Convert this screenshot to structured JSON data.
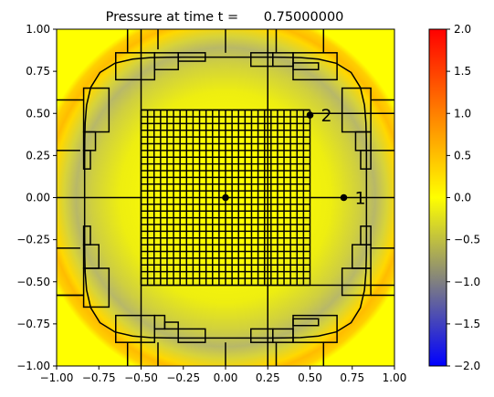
{
  "chart_data": {
    "type": "heatmap",
    "title": "Pressure at time t =      0.75000000",
    "xlim": [
      -1.0,
      1.0
    ],
    "ylim": [
      -1.0,
      1.0
    ],
    "x_ticks": [
      "−1.00",
      "−0.75",
      "−0.50",
      "−0.25",
      "0.00",
      "0.25",
      "0.50",
      "0.75",
      "1.00"
    ],
    "y_ticks": [
      "−1.00",
      "−0.75",
      "−0.50",
      "−0.25",
      "0.00",
      "0.25",
      "0.50",
      "0.75",
      "1.00"
    ],
    "x_tick_values": [
      -1.0,
      -0.75,
      -0.5,
      -0.25,
      0.0,
      0.25,
      0.5,
      0.75,
      1.0
    ],
    "y_tick_values": [
      -1.0,
      -0.75,
      -0.5,
      -0.25,
      0.0,
      0.25,
      0.5,
      0.75,
      1.0
    ],
    "colorbar": {
      "range": [
        -2.0,
        2.0
      ],
      "ticks": [
        "2.0",
        "1.5",
        "1.0",
        "0.5",
        "0.0",
        "−0.5",
        "−1.0",
        "−1.5",
        "−2.0"
      ],
      "tick_values": [
        2.0,
        1.5,
        1.0,
        0.5,
        0.0,
        -0.5,
        -1.0,
        -1.5,
        -2.0
      ],
      "colors": [
        "#0000ff",
        "#808080",
        "#ffff00",
        "#ff8000",
        "#ff0000"
      ]
    },
    "field": {
      "description_values": "approximately 0 (yellow) at center and corners, about -0.8 (grey) in a ring near radius 0.83, about +0.6 (orange) near radius 0.97"
    },
    "points": [
      {
        "label": "1",
        "x": 0.7,
        "y": 0.0
      },
      {
        "label": "2",
        "x": 0.5,
        "y": 0.49
      },
      {
        "label": "",
        "x": 0.0,
        "y": 0.0
      }
    ],
    "fine_grid": {
      "x_range": [
        -0.5,
        0.5
      ],
      "y_range": [
        -0.52,
        0.52
      ],
      "nx": 26,
      "ny": 26
    }
  }
}
